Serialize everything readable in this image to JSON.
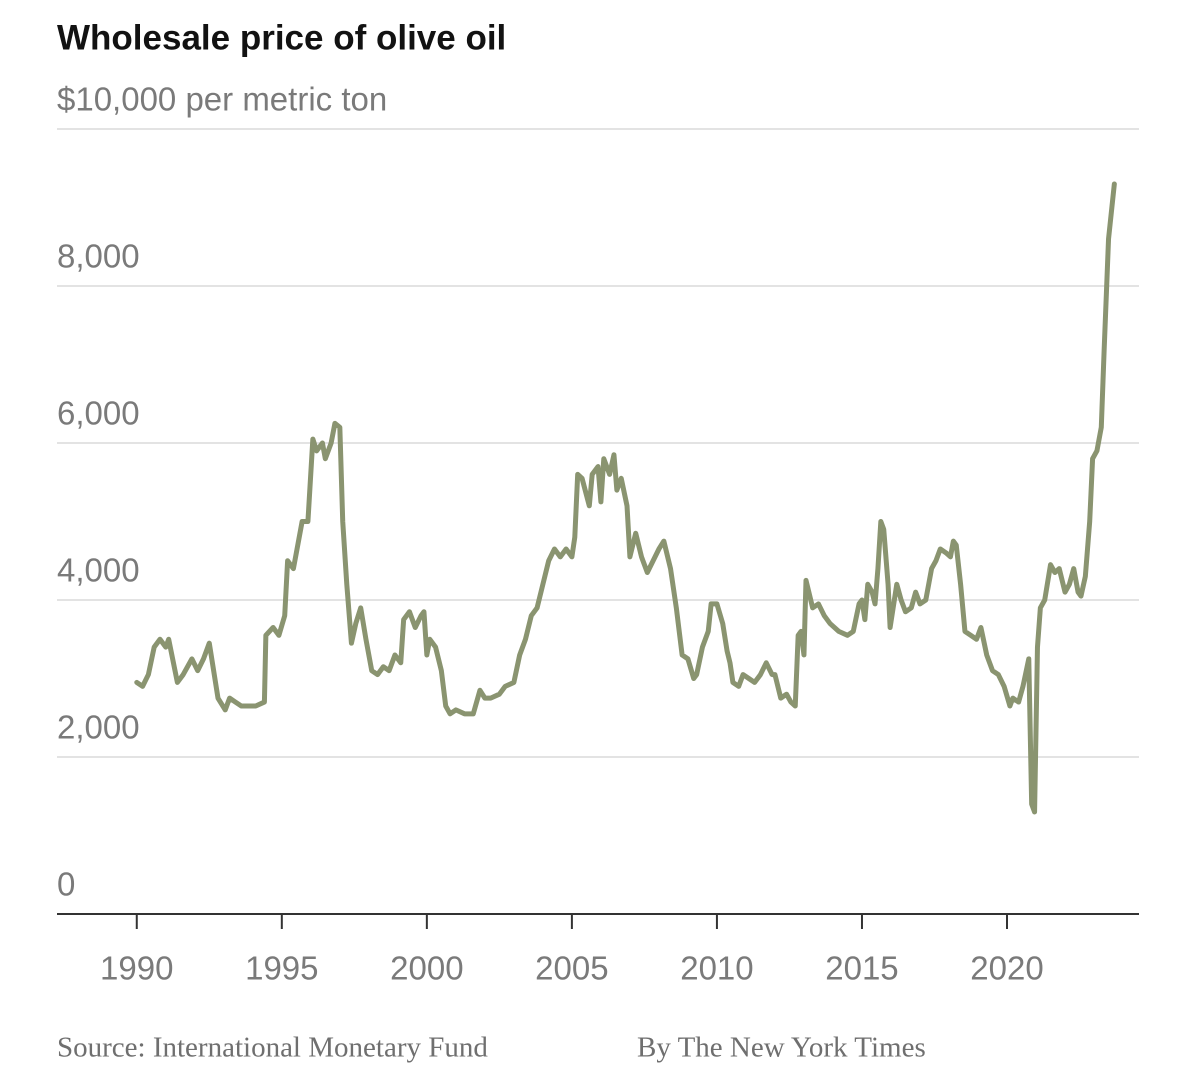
{
  "chart_data": {
    "type": "line",
    "title": "Wholesale price of olive oil",
    "source": "Source: International Monetary Fund",
    "byline": "By The New York Times",
    "color": "#8a9470",
    "grid": true,
    "xlim": [
      1987.25,
      2024.55
    ],
    "ylim": [
      0,
      10000
    ],
    "xticks": [
      1990,
      1995,
      2000,
      2005,
      2010,
      2015,
      2020
    ],
    "yticks": [
      0,
      {
        "value": 2000,
        "label": "2,000"
      },
      {
        "value": 4000,
        "label": "4,000"
      },
      {
        "value": 6000,
        "label": "6,000"
      },
      {
        "value": 8000,
        "label": "8,000"
      },
      {
        "value": 10000,
        "label": "$10,000 per metric ton"
      }
    ],
    "x": [
      1990.0,
      1990.2,
      1990.4,
      1990.6,
      1990.8,
      1991.0,
      1991.1,
      1991.4,
      1991.6,
      1991.9,
      1992.1,
      1992.3,
      1992.5,
      1992.8,
      1993.05,
      1993.2,
      1993.4,
      1993.6,
      1993.8,
      1994.1,
      1994.4,
      1994.45,
      1994.7,
      1994.9,
      1995.1,
      1995.2,
      1995.4,
      1995.5,
      1995.7,
      1995.9,
      1996.07,
      1996.2,
      1996.4,
      1996.5,
      1996.7,
      1996.83,
      1997.0,
      1997.1,
      1997.24,
      1997.4,
      1997.55,
      1997.72,
      1997.9,
      1998.1,
      1998.3,
      1998.5,
      1998.7,
      1998.9,
      1999.1,
      1999.2,
      1999.4,
      1999.6,
      1999.8,
      1999.9,
      2000.0,
      2000.1,
      2000.3,
      2000.5,
      2000.65,
      2000.8,
      2001.0,
      2001.3,
      2001.6,
      2001.83,
      2002.0,
      2002.2,
      2002.5,
      2002.7,
      2003.0,
      2003.2,
      2003.4,
      2003.6,
      2003.8,
      2004.0,
      2004.2,
      2004.4,
      2004.6,
      2004.8,
      2005.0,
      2005.1,
      2005.2,
      2005.35,
      2005.6,
      2005.7,
      2005.9,
      2006.0,
      2006.1,
      2006.3,
      2006.45,
      2006.55,
      2006.7,
      2006.9,
      2007.0,
      2007.2,
      2007.4,
      2007.6,
      2007.8,
      2008.0,
      2008.17,
      2008.4,
      2008.6,
      2008.8,
      2009.0,
      2009.2,
      2009.3,
      2009.5,
      2009.7,
      2009.8,
      2010.0,
      2010.2,
      2010.35,
      2010.45,
      2010.55,
      2010.75,
      2010.9,
      2011.1,
      2011.3,
      2011.5,
      2011.7,
      2011.9,
      2012.0,
      2012.2,
      2012.4,
      2012.55,
      2012.7,
      2012.8,
      2012.9,
      2013.0,
      2013.07,
      2013.3,
      2013.5,
      2013.7,
      2013.9,
      2014.2,
      2014.5,
      2014.7,
      2014.9,
      2015.0,
      2015.1,
      2015.2,
      2015.35,
      2015.45,
      2015.55,
      2015.65,
      2015.75,
      2015.9,
      2015.97,
      2016.2,
      2016.35,
      2016.5,
      2016.7,
      2016.85,
      2017.0,
      2017.2,
      2017.4,
      2017.55,
      2017.7,
      2017.9,
      2018.05,
      2018.15,
      2018.25,
      2018.4,
      2018.55,
      2018.75,
      2018.95,
      2019.1,
      2019.3,
      2019.5,
      2019.7,
      2019.9,
      2020.1,
      2020.2,
      2020.4,
      2020.55,
      2020.75,
      2020.85,
      2020.95,
      2021.05,
      2021.15,
      2021.3,
      2021.5,
      2021.65,
      2021.8,
      2022.0,
      2022.15,
      2022.3,
      2022.45,
      2022.55,
      2022.7,
      2022.85,
      2022.95,
      2023.1,
      2023.25,
      2023.35,
      2023.5,
      2023.7
    ],
    "values": [
      2950,
      2900,
      3050,
      3400,
      3500,
      3400,
      3500,
      2950,
      3050,
      3250,
      3100,
      3250,
      3450,
      2750,
      2600,
      2750,
      2700,
      2650,
      2650,
      2650,
      2700,
      3550,
      3650,
      3550,
      3800,
      4500,
      4400,
      4600,
      5000,
      5000,
      6050,
      5900,
      6000,
      5800,
      6000,
      6250,
      6200,
      5000,
      4200,
      3450,
      3700,
      3900,
      3500,
      3100,
      3050,
      3150,
      3100,
      3300,
      3200,
      3750,
      3850,
      3650,
      3800,
      3850,
      3300,
      3500,
      3400,
      3100,
      2650,
      2550,
      2600,
      2550,
      2550,
      2850,
      2750,
      2750,
      2800,
      2900,
      2950,
      3300,
      3500,
      3800,
      3900,
      4200,
      4500,
      4650,
      4550,
      4650,
      4550,
      4800,
      5600,
      5550,
      5200,
      5600,
      5700,
      5250,
      5800,
      5600,
      5850,
      5400,
      5550,
      5200,
      4550,
      4850,
      4550,
      4350,
      4500,
      4650,
      4750,
      4400,
      3900,
      3300,
      3250,
      3000,
      3050,
      3400,
      3600,
      3950,
      3950,
      3700,
      3350,
      3200,
      2950,
      2900,
      3050,
      3000,
      2950,
      3050,
      3200,
      3050,
      3050,
      2750,
      2800,
      2700,
      2650,
      3550,
      3600,
      3300,
      4250,
      3900,
      3950,
      3800,
      3700,
      3600,
      3550,
      3600,
      3950,
      4000,
      3750,
      4200,
      4100,
      3950,
      4400,
      5000,
      4900,
      4200,
      3650,
      4200,
      4000,
      3850,
      3900,
      4100,
      3950,
      4000,
      4400,
      4500,
      4650,
      4600,
      4550,
      4750,
      4700,
      4200,
      3600,
      3550,
      3500,
      3650,
      3300,
      3100,
      3050,
      2900,
      2650,
      2750,
      2700,
      2900,
      3250,
      1400,
      1300,
      3400,
      3900,
      4000,
      4450,
      4350,
      4400,
      4100,
      4200,
      4400,
      4100,
      4050,
      4300,
      5000,
      5800,
      5900,
      6200,
      7200,
      8600,
      9300
    ]
  }
}
